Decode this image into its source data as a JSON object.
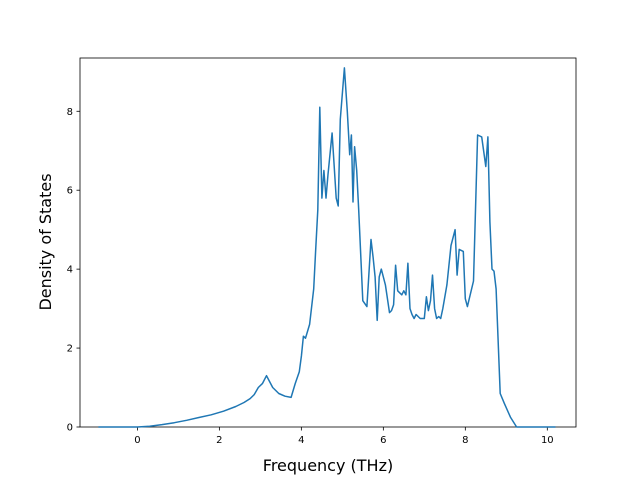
{
  "chart_data": {
    "type": "line",
    "title": "",
    "xlabel": "Frequency (THz)",
    "ylabel": "Density of States",
    "xlim": [
      -1.4,
      10.7
    ],
    "ylim": [
      0,
      9.35
    ],
    "xticks": [
      0,
      2,
      4,
      6,
      8,
      10
    ],
    "yticks": [
      0,
      2,
      4,
      6,
      8
    ],
    "grid": false,
    "legend": "none",
    "series": [
      {
        "color": "#1f77b4",
        "x": [
          -0.95,
          -0.6,
          -0.3,
          0.0,
          0.3,
          0.6,
          0.9,
          1.2,
          1.5,
          1.8,
          2.1,
          2.4,
          2.6,
          2.75,
          2.85,
          2.95,
          3.05,
          3.15,
          3.3,
          3.45,
          3.6,
          3.75,
          3.85,
          3.95,
          4.0,
          4.05,
          4.1,
          4.2,
          4.3,
          4.35,
          4.4,
          4.45,
          4.5,
          4.55,
          4.6,
          4.65,
          4.75,
          4.85,
          4.9,
          4.95,
          5.05,
          5.12,
          5.18,
          5.22,
          5.26,
          5.3,
          5.35,
          5.4,
          5.5,
          5.6,
          5.7,
          5.75,
          5.8,
          5.85,
          5.9,
          5.95,
          6.05,
          6.15,
          6.2,
          6.25,
          6.3,
          6.35,
          6.4,
          6.45,
          6.5,
          6.55,
          6.6,
          6.65,
          6.7,
          6.75,
          6.8,
          6.9,
          7.0,
          7.05,
          7.1,
          7.15,
          7.2,
          7.25,
          7.3,
          7.35,
          7.4,
          7.45,
          7.55,
          7.65,
          7.75,
          7.8,
          7.85,
          7.95,
          8.0,
          8.05,
          8.2,
          8.3,
          8.4,
          8.5,
          8.55,
          8.6,
          8.65,
          8.7,
          8.75,
          8.85,
          8.95,
          9.1,
          9.25,
          9.5,
          9.8,
          10.2
        ],
        "y": [
          0.0,
          0.0,
          0.0,
          0.0,
          0.02,
          0.06,
          0.11,
          0.17,
          0.24,
          0.31,
          0.4,
          0.52,
          0.62,
          0.72,
          0.82,
          1.0,
          1.1,
          1.3,
          1.0,
          0.85,
          0.78,
          0.75,
          1.1,
          1.4,
          1.8,
          2.3,
          2.25,
          2.6,
          3.5,
          4.5,
          5.5,
          8.1,
          5.8,
          6.5,
          5.8,
          6.4,
          7.45,
          5.8,
          5.6,
          7.8,
          9.1,
          8.0,
          6.9,
          7.4,
          5.7,
          7.1,
          6.5,
          5.5,
          3.2,
          3.05,
          4.75,
          4.3,
          3.8,
          2.7,
          3.8,
          4.0,
          3.6,
          2.9,
          2.95,
          3.1,
          4.1,
          3.45,
          3.4,
          3.35,
          3.45,
          3.35,
          4.15,
          3.0,
          2.85,
          2.75,
          2.85,
          2.75,
          2.75,
          3.3,
          2.95,
          3.2,
          3.85,
          3.0,
          2.75,
          2.8,
          2.75,
          3.0,
          3.6,
          4.6,
          5.0,
          3.85,
          4.5,
          4.45,
          3.25,
          3.05,
          3.7,
          7.4,
          7.35,
          6.6,
          7.35,
          5.2,
          4.0,
          3.95,
          3.5,
          0.85,
          0.6,
          0.25,
          0.0,
          0.0,
          0.0,
          0.0
        ]
      }
    ]
  }
}
